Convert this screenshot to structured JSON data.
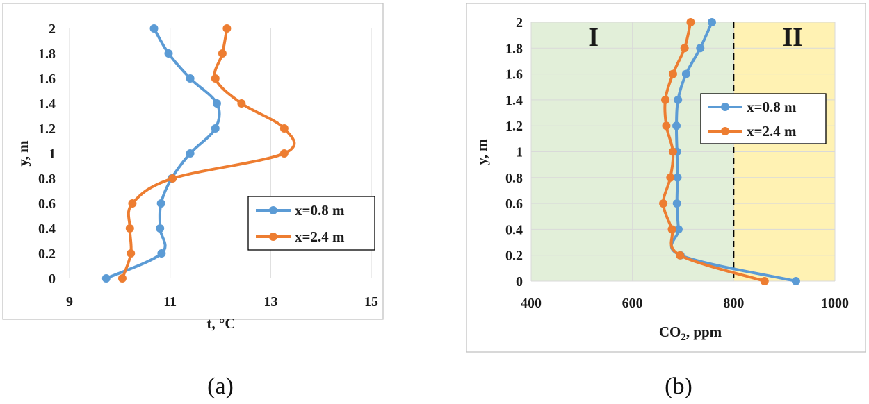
{
  "chart_data": [
    {
      "type": "line",
      "caption": "(a)",
      "xlabel": "t, °C",
      "ylabel": "y, m",
      "xlim": [
        9,
        15
      ],
      "ylim": [
        0,
        2
      ],
      "xticks": [
        "9",
        "11",
        "13",
        "15"
      ],
      "xtick_values": [
        9,
        11,
        13,
        15
      ],
      "yticks": [
        "0",
        "0.2",
        "0.4",
        "0.6",
        "0.8",
        "1",
        "1.2",
        "1.4",
        "1.6",
        "1.8",
        "2"
      ],
      "ytick_values": [
        0,
        0.2,
        0.4,
        0.6,
        0.8,
        1.0,
        1.2,
        1.4,
        1.6,
        1.8,
        2.0
      ],
      "grid": "vertical",
      "legend_position": "lower-right",
      "series": [
        {
          "name": "x=0.8 m",
          "color": "#5b9bd5",
          "x": [
            9.73,
            10.83,
            10.8,
            10.82,
            11.03,
            11.4,
            11.9,
            11.93,
            11.4,
            10.97,
            10.68
          ],
          "y": [
            0,
            0.2,
            0.4,
            0.6,
            0.8,
            1.0,
            1.2,
            1.4,
            1.6,
            1.8,
            2.0
          ]
        },
        {
          "name": "x=2.4 m",
          "color": "#ed7d31",
          "x": [
            10.05,
            10.22,
            10.2,
            10.25,
            11.05,
            13.27,
            13.27,
            12.42,
            11.9,
            12.04,
            12.13
          ],
          "y": [
            0,
            0.2,
            0.4,
            0.6,
            0.8,
            1.0,
            1.2,
            1.4,
            1.6,
            1.8,
            2.0
          ]
        }
      ]
    },
    {
      "type": "line",
      "caption": "(b)",
      "xlabel_main": "CO",
      "xlabel_sub": "2",
      "xlabel_rest": ", ppm",
      "ylabel": "y, m",
      "xlim": [
        400,
        1000
      ],
      "ylim": [
        0,
        2
      ],
      "xticks": [
        "400",
        "600",
        "800",
        "1000"
      ],
      "xtick_values": [
        400,
        600,
        800,
        1000
      ],
      "yticks": [
        "0",
        "0.2",
        "0.4",
        "0.6",
        "0.8",
        "1",
        "1.2",
        "1.4",
        "1.6",
        "1.8",
        "2"
      ],
      "ytick_values": [
        0,
        0.2,
        0.4,
        0.6,
        0.8,
        1.0,
        1.2,
        1.4,
        1.6,
        1.8,
        2.0
      ],
      "grid": "both",
      "legend_position": "upper-right",
      "regions": [
        {
          "label": "I",
          "from": 400,
          "to": 800,
          "color": "#e2efd9"
        },
        {
          "label": "II",
          "from": 800,
          "to": 1000,
          "color": "#fff2b3"
        }
      ],
      "threshold": 800,
      "series": [
        {
          "name": "x=0.8 m",
          "color": "#5b9bd5",
          "x": [
            923,
            695,
            691,
            688,
            689,
            688,
            687,
            690,
            706,
            734,
            757
          ],
          "y": [
            0,
            0.2,
            0.4,
            0.6,
            0.8,
            1.0,
            1.2,
            1.4,
            1.6,
            1.8,
            2.0
          ]
        },
        {
          "name": "x=2.4 m",
          "color": "#ed7d31",
          "x": [
            861,
            694,
            678,
            661,
            675,
            680,
            667,
            665,
            680,
            703,
            715
          ],
          "y": [
            0,
            0.2,
            0.4,
            0.6,
            0.8,
            1.0,
            1.2,
            1.4,
            1.6,
            1.8,
            2.0
          ]
        }
      ]
    }
  ]
}
